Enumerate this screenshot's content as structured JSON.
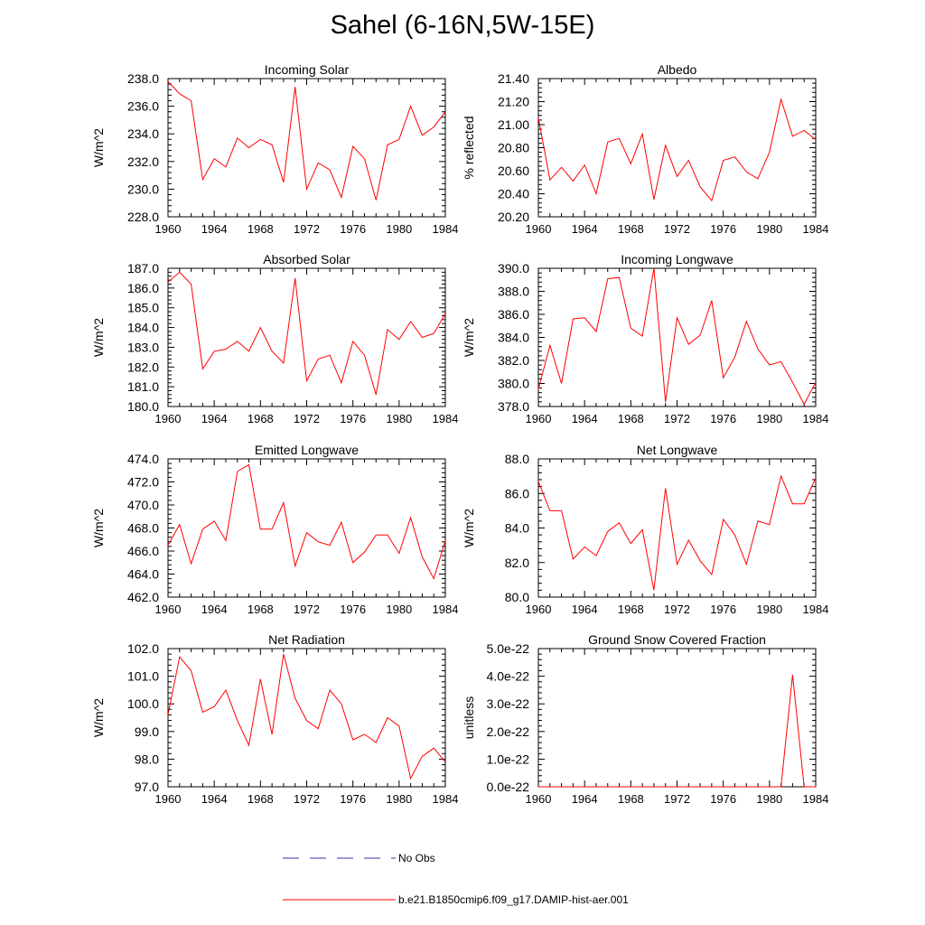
{
  "figure": {
    "title": "Sahel (6-16N,5W-15E)"
  },
  "legend": [
    {
      "label": "No Obs",
      "color": "#3333aa",
      "dash": "dashed"
    },
    {
      "label": "b.e21.B1850cmip6.f09_g17.DAMIP-hist-aer.001",
      "color": "#ff0000",
      "dash": "solid"
    }
  ],
  "chart_data": [
    {
      "type": "line",
      "title": "Incoming Solar",
      "ylabel": "W/m^2",
      "xlim": [
        1960,
        1984
      ],
      "ylim": [
        228.0,
        238.0
      ],
      "xticks": [
        "1960",
        "1964",
        "1968",
        "1972",
        "1976",
        "1980",
        "1984"
      ],
      "yticks": [
        "228.0",
        "230.0",
        "232.0",
        "234.0",
        "236.0",
        "238.0"
      ],
      "x": [
        1960,
        1961,
        1962,
        1963,
        1964,
        1965,
        1966,
        1967,
        1968,
        1969,
        1970,
        1971,
        1972,
        1973,
        1974,
        1975,
        1976,
        1977,
        1978,
        1979,
        1980,
        1981,
        1982,
        1983,
        1984
      ],
      "series": [
        {
          "values": [
            237.8,
            236.9,
            236.4,
            230.7,
            232.2,
            231.6,
            233.7,
            233.0,
            233.6,
            233.2,
            230.5,
            237.4,
            230.0,
            231.9,
            231.4,
            229.4,
            233.1,
            232.2,
            229.2,
            233.2,
            233.6,
            236.0,
            233.9,
            234.5,
            235.6
          ]
        }
      ]
    },
    {
      "type": "line",
      "title": "Albedo",
      "ylabel": "% reflected",
      "xlim": [
        1960,
        1984
      ],
      "ylim": [
        20.2,
        21.4
      ],
      "xticks": [
        "1960",
        "1964",
        "1968",
        "1972",
        "1976",
        "1980",
        "1984"
      ],
      "yticks": [
        "20.20",
        "20.40",
        "20.60",
        "20.80",
        "21.00",
        "21.20",
        "21.40"
      ],
      "x": [
        1960,
        1961,
        1962,
        1963,
        1964,
        1965,
        1966,
        1967,
        1968,
        1969,
        1970,
        1971,
        1972,
        1973,
        1974,
        1975,
        1976,
        1977,
        1978,
        1979,
        1980,
        1981,
        1982,
        1983,
        1984
      ],
      "series": [
        {
          "values": [
            21.06,
            20.52,
            20.63,
            20.51,
            20.65,
            20.4,
            20.85,
            20.88,
            20.66,
            20.92,
            20.35,
            20.82,
            20.55,
            20.69,
            20.46,
            20.34,
            20.69,
            20.72,
            20.59,
            20.53,
            20.76,
            21.22,
            20.9,
            20.95,
            20.87
          ]
        }
      ]
    },
    {
      "type": "line",
      "title": "Absorbed Solar",
      "ylabel": "W/m^2",
      "xlim": [
        1960,
        1984
      ],
      "ylim": [
        180.0,
        187.0
      ],
      "xticks": [
        "1960",
        "1964",
        "1968",
        "1972",
        "1976",
        "1980",
        "1984"
      ],
      "yticks": [
        "180.0",
        "181.0",
        "182.0",
        "183.0",
        "184.0",
        "185.0",
        "186.0",
        "187.0"
      ],
      "x": [
        1960,
        1961,
        1962,
        1963,
        1964,
        1965,
        1966,
        1967,
        1968,
        1969,
        1970,
        1971,
        1972,
        1973,
        1974,
        1975,
        1976,
        1977,
        1978,
        1979,
        1980,
        1981,
        1982,
        1983,
        1984
      ],
      "series": [
        {
          "values": [
            186.3,
            186.8,
            186.2,
            181.9,
            182.8,
            182.9,
            183.3,
            182.8,
            184.0,
            182.8,
            182.2,
            186.5,
            181.3,
            182.4,
            182.6,
            181.2,
            183.3,
            182.6,
            180.6,
            183.9,
            183.4,
            184.3,
            183.5,
            183.7,
            184.7
          ]
        }
      ]
    },
    {
      "type": "line",
      "title": "Incoming Longwave",
      "ylabel": "W/m^2",
      "xlim": [
        1960,
        1984
      ],
      "ylim": [
        378.0,
        390.0
      ],
      "xticks": [
        "1960",
        "1964",
        "1968",
        "1972",
        "1976",
        "1980",
        "1984"
      ],
      "yticks": [
        "378.0",
        "380.0",
        "382.0",
        "384.0",
        "386.0",
        "388.0",
        "390.0"
      ],
      "x": [
        1960,
        1961,
        1962,
        1963,
        1964,
        1965,
        1966,
        1967,
        1968,
        1969,
        1970,
        1971,
        1972,
        1973,
        1974,
        1975,
        1976,
        1977,
        1978,
        1979,
        1980,
        1981,
        1982,
        1983,
        1984
      ],
      "series": [
        {
          "values": [
            379.5,
            383.3,
            380.0,
            385.6,
            385.7,
            384.5,
            389.1,
            389.2,
            384.8,
            384.1,
            390.0,
            378.4,
            385.7,
            383.4,
            384.2,
            387.2,
            380.5,
            382.3,
            385.4,
            383.0,
            381.6,
            381.9,
            380.1,
            378.2,
            380.1
          ]
        }
      ]
    },
    {
      "type": "line",
      "title": "Emitted Longwave",
      "ylabel": "W/m^2",
      "xlim": [
        1960,
        1984
      ],
      "ylim": [
        462.0,
        474.0
      ],
      "xticks": [
        "1960",
        "1964",
        "1968",
        "1972",
        "1976",
        "1980",
        "1984"
      ],
      "yticks": [
        "462.0",
        "464.0",
        "466.0",
        "468.0",
        "470.0",
        "472.0",
        "474.0"
      ],
      "x": [
        1960,
        1961,
        1962,
        1963,
        1964,
        1965,
        1966,
        1967,
        1968,
        1969,
        1970,
        1971,
        1972,
        1973,
        1974,
        1975,
        1976,
        1977,
        1978,
        1979,
        1980,
        1981,
        1982,
        1983,
        1984
      ],
      "series": [
        {
          "values": [
            466.5,
            468.3,
            464.9,
            467.9,
            468.6,
            466.9,
            472.9,
            473.5,
            467.9,
            467.9,
            470.2,
            464.7,
            467.6,
            466.8,
            466.5,
            468.5,
            465.0,
            465.9,
            467.4,
            467.4,
            465.8,
            468.9,
            465.5,
            463.6,
            466.9
          ]
        }
      ]
    },
    {
      "type": "line",
      "title": "Net Longwave",
      "ylabel": "W/m^2",
      "xlim": [
        1960,
        1984
      ],
      "ylim": [
        80.0,
        88.0
      ],
      "xticks": [
        "1960",
        "1964",
        "1968",
        "1972",
        "1976",
        "1980",
        "1984"
      ],
      "yticks": [
        "80.0",
        "82.0",
        "84.0",
        "86.0",
        "88.0"
      ],
      "x": [
        1960,
        1961,
        1962,
        1963,
        1964,
        1965,
        1966,
        1967,
        1968,
        1969,
        1970,
        1971,
        1972,
        1973,
        1974,
        1975,
        1976,
        1977,
        1978,
        1979,
        1980,
        1981,
        1982,
        1983,
        1984
      ],
      "series": [
        {
          "values": [
            86.7,
            85.0,
            85.0,
            82.2,
            82.9,
            82.4,
            83.8,
            84.3,
            83.1,
            83.9,
            80.4,
            86.3,
            81.9,
            83.3,
            82.1,
            81.3,
            84.5,
            83.6,
            81.9,
            84.4,
            84.2,
            87.0,
            85.4,
            85.4,
            86.9
          ]
        }
      ]
    },
    {
      "type": "line",
      "title": "Net Radiation",
      "ylabel": "W/m^2",
      "xlim": [
        1960,
        1984
      ],
      "ylim": [
        97.0,
        102.0
      ],
      "xticks": [
        "1960",
        "1964",
        "1968",
        "1972",
        "1976",
        "1980",
        "1984"
      ],
      "yticks": [
        "97.0",
        "98.0",
        "99.0",
        "100.0",
        "101.0",
        "102.0"
      ],
      "x": [
        1960,
        1961,
        1962,
        1963,
        1964,
        1965,
        1966,
        1967,
        1968,
        1969,
        1970,
        1971,
        1972,
        1973,
        1974,
        1975,
        1976,
        1977,
        1978,
        1979,
        1980,
        1981,
        1982,
        1983,
        1984
      ],
      "series": [
        {
          "values": [
            99.6,
            101.7,
            101.2,
            99.7,
            99.9,
            100.5,
            99.4,
            98.5,
            100.9,
            98.9,
            101.8,
            100.2,
            99.4,
            99.1,
            100.5,
            100.0,
            98.7,
            98.9,
            98.6,
            99.5,
            99.2,
            97.3,
            98.1,
            98.4,
            97.9
          ]
        }
      ]
    },
    {
      "type": "line",
      "title": "Ground Snow Covered Fraction",
      "ylabel": "unitless",
      "xlim": [
        1960,
        1984
      ],
      "ylim": [
        0.0,
        5e-22
      ],
      "xticks": [
        "1960",
        "1964",
        "1968",
        "1972",
        "1976",
        "1980",
        "1984"
      ],
      "yticks": [
        "0.0e-22",
        "1.0e-22",
        "2.0e-22",
        "3.0e-22",
        "4.0e-22",
        "5.0e-22"
      ],
      "x": [
        1960,
        1961,
        1962,
        1963,
        1964,
        1965,
        1966,
        1967,
        1968,
        1969,
        1970,
        1971,
        1972,
        1973,
        1974,
        1975,
        1976,
        1977,
        1978,
        1979,
        1980,
        1981,
        1982,
        1983,
        1984
      ],
      "series": [
        {
          "values": [
            0,
            0,
            0,
            0,
            0,
            0,
            0,
            0,
            0,
            0,
            0,
            0,
            0,
            0,
            0,
            0,
            0,
            0,
            0,
            0,
            0,
            0,
            4.05e-22,
            0,
            0
          ]
        }
      ]
    }
  ]
}
